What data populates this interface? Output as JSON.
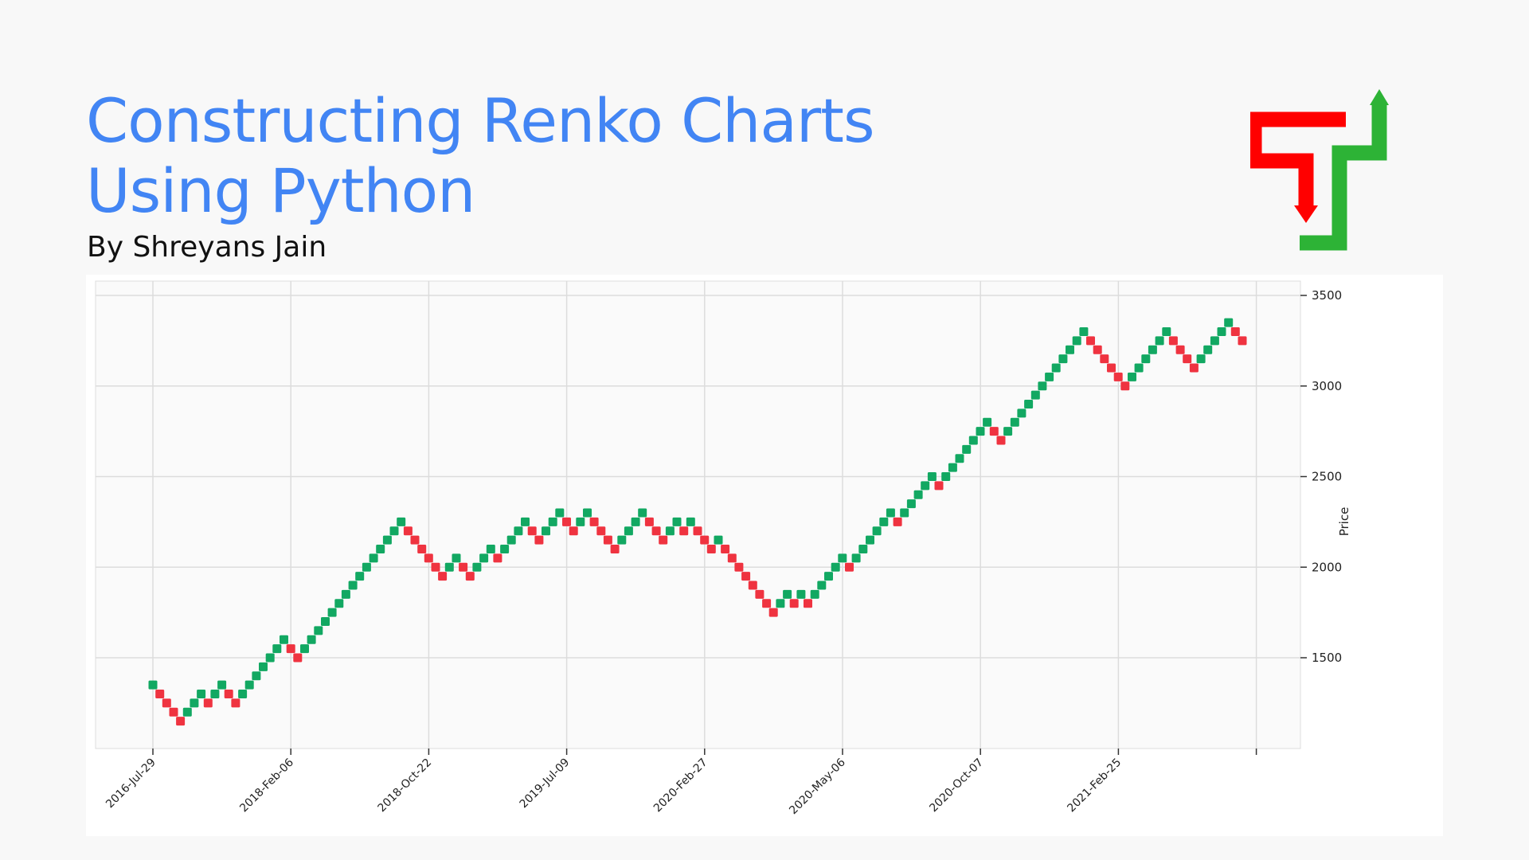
{
  "header": {
    "title_line1": "Constructing Renko Charts",
    "title_line2": "Using Python",
    "author": "By Shreyans Jain"
  },
  "logo": {
    "icon": "renko-arrows-logo",
    "down_color": "#ff0000",
    "up_color": "#2db336"
  },
  "chart_data": {
    "type": "renko",
    "ylabel": "Price",
    "y_ticks": [
      1500,
      2000,
      2500,
      3000,
      3500
    ],
    "ylim": [
      1000,
      3500
    ],
    "x_ticks": [
      "2016-Jul-29",
      "2018-Feb-06",
      "2018-Oct-22",
      "2019-Jul-09",
      "2020-Feb-27",
      "2020-May-06",
      "2020-Oct-07",
      "2021-Feb-25"
    ],
    "grid": true,
    "up_color": "#12a862",
    "down_color": "#ef3340",
    "brick_size": 50,
    "bricks": [
      {
        "dir": "up",
        "price": 1350
      },
      {
        "dir": "down",
        "price": 1300
      },
      {
        "dir": "down",
        "price": 1250
      },
      {
        "dir": "down",
        "price": 1200
      },
      {
        "dir": "down",
        "price": 1150
      },
      {
        "dir": "up",
        "price": 1200
      },
      {
        "dir": "up",
        "price": 1250
      },
      {
        "dir": "up",
        "price": 1300
      },
      {
        "dir": "down",
        "price": 1250
      },
      {
        "dir": "up",
        "price": 1300
      },
      {
        "dir": "up",
        "price": 1350
      },
      {
        "dir": "down",
        "price": 1300
      },
      {
        "dir": "down",
        "price": 1250
      },
      {
        "dir": "up",
        "price": 1300
      },
      {
        "dir": "up",
        "price": 1350
      },
      {
        "dir": "up",
        "price": 1400
      },
      {
        "dir": "up",
        "price": 1450
      },
      {
        "dir": "up",
        "price": 1500
      },
      {
        "dir": "up",
        "price": 1550
      },
      {
        "dir": "up",
        "price": 1600
      },
      {
        "dir": "down",
        "price": 1550
      },
      {
        "dir": "down",
        "price": 1500
      },
      {
        "dir": "up",
        "price": 1550
      },
      {
        "dir": "up",
        "price": 1600
      },
      {
        "dir": "up",
        "price": 1650
      },
      {
        "dir": "up",
        "price": 1700
      },
      {
        "dir": "up",
        "price": 1750
      },
      {
        "dir": "up",
        "price": 1800
      },
      {
        "dir": "up",
        "price": 1850
      },
      {
        "dir": "up",
        "price": 1900
      },
      {
        "dir": "up",
        "price": 1950
      },
      {
        "dir": "up",
        "price": 2000
      },
      {
        "dir": "up",
        "price": 2050
      },
      {
        "dir": "up",
        "price": 2100
      },
      {
        "dir": "up",
        "price": 2150
      },
      {
        "dir": "up",
        "price": 2200
      },
      {
        "dir": "up",
        "price": 2250
      },
      {
        "dir": "down",
        "price": 2200
      },
      {
        "dir": "down",
        "price": 2150
      },
      {
        "dir": "down",
        "price": 2100
      },
      {
        "dir": "down",
        "price": 2050
      },
      {
        "dir": "down",
        "price": 2000
      },
      {
        "dir": "down",
        "price": 1950
      },
      {
        "dir": "up",
        "price": 2000
      },
      {
        "dir": "up",
        "price": 2050
      },
      {
        "dir": "down",
        "price": 2000
      },
      {
        "dir": "down",
        "price": 1950
      },
      {
        "dir": "up",
        "price": 2000
      },
      {
        "dir": "up",
        "price": 2050
      },
      {
        "dir": "up",
        "price": 2100
      },
      {
        "dir": "down",
        "price": 2050
      },
      {
        "dir": "up",
        "price": 2100
      },
      {
        "dir": "up",
        "price": 2150
      },
      {
        "dir": "up",
        "price": 2200
      },
      {
        "dir": "up",
        "price": 2250
      },
      {
        "dir": "down",
        "price": 2200
      },
      {
        "dir": "down",
        "price": 2150
      },
      {
        "dir": "up",
        "price": 2200
      },
      {
        "dir": "up",
        "price": 2250
      },
      {
        "dir": "up",
        "price": 2300
      },
      {
        "dir": "down",
        "price": 2250
      },
      {
        "dir": "down",
        "price": 2200
      },
      {
        "dir": "up",
        "price": 2250
      },
      {
        "dir": "up",
        "price": 2300
      },
      {
        "dir": "down",
        "price": 2250
      },
      {
        "dir": "down",
        "price": 2200
      },
      {
        "dir": "down",
        "price": 2150
      },
      {
        "dir": "down",
        "price": 2100
      },
      {
        "dir": "up",
        "price": 2150
      },
      {
        "dir": "up",
        "price": 2200
      },
      {
        "dir": "up",
        "price": 2250
      },
      {
        "dir": "up",
        "price": 2300
      },
      {
        "dir": "down",
        "price": 2250
      },
      {
        "dir": "down",
        "price": 2200
      },
      {
        "dir": "down",
        "price": 2150
      },
      {
        "dir": "up",
        "price": 2200
      },
      {
        "dir": "up",
        "price": 2250
      },
      {
        "dir": "down",
        "price": 2200
      },
      {
        "dir": "up",
        "price": 2250
      },
      {
        "dir": "down",
        "price": 2200
      },
      {
        "dir": "down",
        "price": 2150
      },
      {
        "dir": "down",
        "price": 2100
      },
      {
        "dir": "up",
        "price": 2150
      },
      {
        "dir": "down",
        "price": 2100
      },
      {
        "dir": "down",
        "price": 2050
      },
      {
        "dir": "down",
        "price": 2000
      },
      {
        "dir": "down",
        "price": 1950
      },
      {
        "dir": "down",
        "price": 1900
      },
      {
        "dir": "down",
        "price": 1850
      },
      {
        "dir": "down",
        "price": 1800
      },
      {
        "dir": "down",
        "price": 1750
      },
      {
        "dir": "up",
        "price": 1800
      },
      {
        "dir": "up",
        "price": 1850
      },
      {
        "dir": "down",
        "price": 1800
      },
      {
        "dir": "up",
        "price": 1850
      },
      {
        "dir": "down",
        "price": 1800
      },
      {
        "dir": "up",
        "price": 1850
      },
      {
        "dir": "up",
        "price": 1900
      },
      {
        "dir": "up",
        "price": 1950
      },
      {
        "dir": "up",
        "price": 2000
      },
      {
        "dir": "up",
        "price": 2050
      },
      {
        "dir": "down",
        "price": 2000
      },
      {
        "dir": "up",
        "price": 2050
      },
      {
        "dir": "up",
        "price": 2100
      },
      {
        "dir": "up",
        "price": 2150
      },
      {
        "dir": "up",
        "price": 2200
      },
      {
        "dir": "up",
        "price": 2250
      },
      {
        "dir": "up",
        "price": 2300
      },
      {
        "dir": "down",
        "price": 2250
      },
      {
        "dir": "up",
        "price": 2300
      },
      {
        "dir": "up",
        "price": 2350
      },
      {
        "dir": "up",
        "price": 2400
      },
      {
        "dir": "up",
        "price": 2450
      },
      {
        "dir": "up",
        "price": 2500
      },
      {
        "dir": "down",
        "price": 2450
      },
      {
        "dir": "up",
        "price": 2500
      },
      {
        "dir": "up",
        "price": 2550
      },
      {
        "dir": "up",
        "price": 2600
      },
      {
        "dir": "up",
        "price": 2650
      },
      {
        "dir": "up",
        "price": 2700
      },
      {
        "dir": "up",
        "price": 2750
      },
      {
        "dir": "up",
        "price": 2800
      },
      {
        "dir": "down",
        "price": 2750
      },
      {
        "dir": "down",
        "price": 2700
      },
      {
        "dir": "up",
        "price": 2750
      },
      {
        "dir": "up",
        "price": 2800
      },
      {
        "dir": "up",
        "price": 2850
      },
      {
        "dir": "up",
        "price": 2900
      },
      {
        "dir": "up",
        "price": 2950
      },
      {
        "dir": "up",
        "price": 3000
      },
      {
        "dir": "up",
        "price": 3050
      },
      {
        "dir": "up",
        "price": 3100
      },
      {
        "dir": "up",
        "price": 3150
      },
      {
        "dir": "up",
        "price": 3200
      },
      {
        "dir": "up",
        "price": 3250
      },
      {
        "dir": "up",
        "price": 3300
      },
      {
        "dir": "down",
        "price": 3250
      },
      {
        "dir": "down",
        "price": 3200
      },
      {
        "dir": "down",
        "price": 3150
      },
      {
        "dir": "down",
        "price": 3100
      },
      {
        "dir": "down",
        "price": 3050
      },
      {
        "dir": "down",
        "price": 3000
      },
      {
        "dir": "up",
        "price": 3050
      },
      {
        "dir": "up",
        "price": 3100
      },
      {
        "dir": "up",
        "price": 3150
      },
      {
        "dir": "up",
        "price": 3200
      },
      {
        "dir": "up",
        "price": 3250
      },
      {
        "dir": "up",
        "price": 3300
      },
      {
        "dir": "down",
        "price": 3250
      },
      {
        "dir": "down",
        "price": 3200
      },
      {
        "dir": "down",
        "price": 3150
      },
      {
        "dir": "down",
        "price": 3100
      },
      {
        "dir": "up",
        "price": 3150
      },
      {
        "dir": "up",
        "price": 3200
      },
      {
        "dir": "up",
        "price": 3250
      },
      {
        "dir": "up",
        "price": 3300
      },
      {
        "dir": "up",
        "price": 3350
      },
      {
        "dir": "down",
        "price": 3300
      },
      {
        "dir": "down",
        "price": 3250
      }
    ]
  }
}
